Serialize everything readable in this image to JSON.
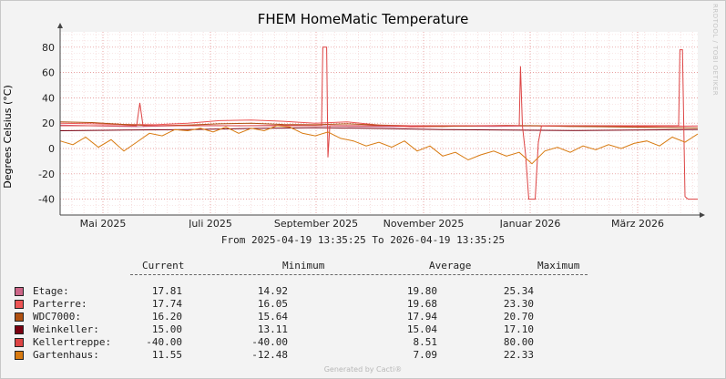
{
  "chart_data": {
    "type": "line",
    "title": "FHEM HomeMatic Temperature",
    "ylabel": "Degrees Celsius (°C)",
    "xlabel": "",
    "ylim": [
      -50,
      93
    ],
    "y_ticks": [
      80,
      60,
      40,
      20,
      0,
      -20,
      -40
    ],
    "x_ticks": [
      "Mai 2025",
      "Juli 2025",
      "September 2025",
      "November 2025",
      "Januar 2026",
      "März 2026"
    ],
    "grid": true,
    "range_text": "From 2025-04-19 13:35:25 To 2026-04-19 13:35:25",
    "series": [
      {
        "name": "Etage",
        "color": "#cc6688",
        "points": [
          [
            0,
            18.5
          ],
          [
            0.06,
            17.8
          ],
          [
            0.12,
            17.3
          ],
          [
            0.2,
            18.2
          ],
          [
            0.28,
            17.9
          ],
          [
            0.36,
            18.4
          ],
          [
            0.44,
            17.6
          ],
          [
            0.52,
            17.2
          ],
          [
            0.6,
            17.9
          ],
          [
            0.68,
            17.4
          ],
          [
            0.76,
            18.0
          ],
          [
            0.84,
            17.3
          ],
          [
            0.9,
            17.9
          ],
          [
            0.96,
            17.5
          ],
          [
            1,
            17.8
          ]
        ]
      },
      {
        "name": "Parterre",
        "color": "#ee5555",
        "points": [
          [
            0,
            20
          ],
          [
            0.05,
            19.5
          ],
          [
            0.1,
            19
          ],
          [
            0.15,
            18.8
          ],
          [
            0.2,
            20
          ],
          [
            0.25,
            22
          ],
          [
            0.3,
            22.5
          ],
          [
            0.35,
            21.5
          ],
          [
            0.4,
            20
          ],
          [
            0.45,
            21
          ],
          [
            0.5,
            18.5
          ],
          [
            0.55,
            17
          ],
          [
            0.6,
            17.5
          ],
          [
            0.65,
            18
          ],
          [
            0.7,
            18.2
          ],
          [
            0.75,
            17.8
          ],
          [
            0.8,
            17.5
          ],
          [
            0.85,
            17.9
          ],
          [
            0.9,
            17.2
          ],
          [
            0.95,
            17.6
          ],
          [
            1,
            17.7
          ]
        ]
      },
      {
        "name": "WDC7000:",
        "color": "#b05010",
        "points": [
          [
            0,
            21
          ],
          [
            0.05,
            20.5
          ],
          [
            0.1,
            19
          ],
          [
            0.15,
            18
          ],
          [
            0.2,
            18.5
          ],
          [
            0.25,
            19.5
          ],
          [
            0.3,
            20
          ],
          [
            0.35,
            19
          ],
          [
            0.4,
            18.8
          ],
          [
            0.45,
            19.5
          ],
          [
            0.5,
            18.5
          ],
          [
            0.55,
            18
          ],
          [
            0.6,
            17.5
          ],
          [
            0.65,
            17.8
          ],
          [
            0.7,
            18.2
          ],
          [
            0.75,
            18
          ],
          [
            0.8,
            17.4
          ],
          [
            0.85,
            17.2
          ],
          [
            0.9,
            16.8
          ],
          [
            0.95,
            16.5
          ],
          [
            1,
            16.2
          ]
        ]
      },
      {
        "name": "Weinkeller:",
        "color": "#7a0010",
        "points": [
          [
            0,
            14
          ],
          [
            0.1,
            14.5
          ],
          [
            0.2,
            15
          ],
          [
            0.3,
            15.8
          ],
          [
            0.4,
            16.5
          ],
          [
            0.5,
            15.8
          ],
          [
            0.6,
            15
          ],
          [
            0.7,
            14.5
          ],
          [
            0.8,
            14.2
          ],
          [
            0.9,
            14.6
          ],
          [
            1,
            15
          ]
        ]
      },
      {
        "name": "Kellertreppe:",
        "color": "#dd4444",
        "points": [
          [
            0,
            18
          ],
          [
            0.12,
            18
          ],
          [
            0.125,
            36
          ],
          [
            0.13,
            18
          ],
          [
            0.4,
            18
          ],
          [
            0.41,
            18
          ],
          [
            0.412,
            80
          ],
          [
            0.418,
            80
          ],
          [
            0.42,
            -7
          ],
          [
            0.423,
            18
          ],
          [
            0.72,
            18
          ],
          [
            0.722,
            65
          ],
          [
            0.725,
            18
          ],
          [
            0.73,
            -5
          ],
          [
            0.735,
            -40
          ],
          [
            0.745,
            -40
          ],
          [
            0.75,
            5
          ],
          [
            0.755,
            18
          ],
          [
            0.97,
            18
          ],
          [
            0.972,
            78
          ],
          [
            0.976,
            78
          ],
          [
            0.98,
            -38
          ],
          [
            0.985,
            -40
          ],
          [
            1,
            -40
          ]
        ]
      },
      {
        "name": "Gartenhaus:",
        "color": "#d87a10",
        "points": [
          [
            0,
            6
          ],
          [
            0.02,
            3
          ],
          [
            0.04,
            9
          ],
          [
            0.06,
            1
          ],
          [
            0.08,
            7
          ],
          [
            0.1,
            -2
          ],
          [
            0.12,
            5
          ],
          [
            0.14,
            12
          ],
          [
            0.16,
            10
          ],
          [
            0.18,
            15
          ],
          [
            0.2,
            14
          ],
          [
            0.22,
            16
          ],
          [
            0.24,
            13
          ],
          [
            0.26,
            17
          ],
          [
            0.28,
            12
          ],
          [
            0.3,
            16
          ],
          [
            0.32,
            14
          ],
          [
            0.34,
            18
          ],
          [
            0.36,
            17
          ],
          [
            0.38,
            12
          ],
          [
            0.4,
            10
          ],
          [
            0.42,
            13
          ],
          [
            0.44,
            8
          ],
          [
            0.46,
            6
          ],
          [
            0.48,
            2
          ],
          [
            0.5,
            5
          ],
          [
            0.52,
            1
          ],
          [
            0.54,
            6
          ],
          [
            0.56,
            -2
          ],
          [
            0.58,
            2
          ],
          [
            0.6,
            -6
          ],
          [
            0.62,
            -3
          ],
          [
            0.64,
            -9
          ],
          [
            0.66,
            -5
          ],
          [
            0.68,
            -2
          ],
          [
            0.7,
            -6
          ],
          [
            0.72,
            -3
          ],
          [
            0.74,
            -12
          ],
          [
            0.76,
            -2
          ],
          [
            0.78,
            1
          ],
          [
            0.8,
            -3
          ],
          [
            0.82,
            2
          ],
          [
            0.84,
            -1
          ],
          [
            0.86,
            3
          ],
          [
            0.88,
            0
          ],
          [
            0.9,
            4
          ],
          [
            0.92,
            6
          ],
          [
            0.94,
            2
          ],
          [
            0.96,
            9
          ],
          [
            0.98,
            5
          ],
          [
            1,
            11.5
          ]
        ]
      }
    ]
  },
  "legend": {
    "headers": {
      "current": "Current",
      "minimum": "Minimum",
      "average": "Average",
      "maximum": "Maximum"
    },
    "rows": [
      {
        "name": "Etage:",
        "color": "#cc6688",
        "current": "17.81",
        "minimum": "14.92",
        "average": "19.80",
        "maximum": "25.34"
      },
      {
        "name": "Parterre:",
        "color": "#ee5555",
        "current": "17.74",
        "minimum": "16.05",
        "average": "19.68",
        "maximum": "23.30"
      },
      {
        "name": "WDC7000:",
        "color": "#b05010",
        "current": "16.20",
        "minimum": "15.64",
        "average": "17.94",
        "maximum": "20.70"
      },
      {
        "name": "Weinkeller:",
        "color": "#7a0010",
        "current": "15.00",
        "minimum": "13.11",
        "average": "15.04",
        "maximum": "17.10"
      },
      {
        "name": "Kellertreppe:",
        "color": "#dd4444",
        "current": "-40.00",
        "minimum": "-40.00",
        "average": "8.51",
        "maximum": "80.00"
      },
      {
        "name": "Gartenhaus:",
        "color": "#d87a10",
        "current": "11.55",
        "minimum": "-12.48",
        "average": "7.09",
        "maximum": "22.33"
      }
    ]
  },
  "watermark": "RRDTOOL / TOBI OETIKER",
  "footer": "Generated by Cacti®"
}
